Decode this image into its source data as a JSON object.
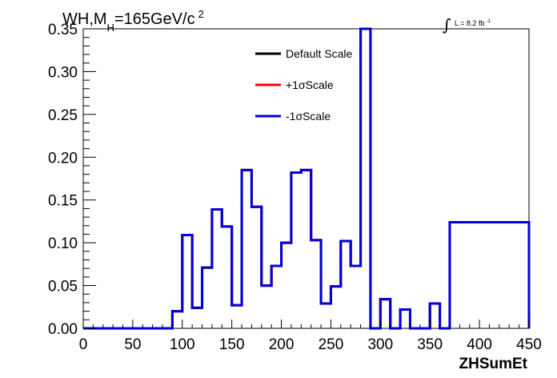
{
  "chart_data": {
    "type": "line",
    "title": {
      "prefix": "WH,M",
      "subscript": "H",
      "suffix": "=165GeV/c",
      "superscript": "2"
    },
    "lumi": {
      "main": "L = 8.2 fb",
      "superscript": "-1"
    },
    "xlabel": "ZHSumEt",
    "ylabel": "",
    "xlim": [
      0,
      450
    ],
    "ylim": [
      0,
      0.35
    ],
    "xticks": [
      0,
      50,
      100,
      150,
      200,
      250,
      300,
      350,
      400,
      450
    ],
    "xtick_labels": [
      "0",
      "50",
      "100",
      "150",
      "200",
      "250",
      "300",
      "350",
      "400",
      "450"
    ],
    "yticks": [
      0,
      0.05,
      0.1,
      0.15,
      0.2,
      0.25,
      0.3,
      0.35
    ],
    "ytick_labels": [
      "0.00",
      "0.05",
      "0.10",
      "0.15",
      "0.20",
      "0.25",
      "0.30",
      "0.35"
    ],
    "grid": false,
    "legend_position": "top-center",
    "bin_edges": [
      0,
      90,
      100,
      110,
      120,
      130,
      140,
      150,
      160,
      170,
      180,
      190,
      200,
      210,
      220,
      230,
      240,
      250,
      260,
      270,
      280,
      290,
      300,
      310,
      320,
      330,
      340,
      350,
      360,
      370,
      450
    ],
    "series": [
      {
        "name": "Default Scale",
        "color": "#000000",
        "visible_on_top": false,
        "values": [
          0,
          0.02,
          0.109,
          0.024,
          0.071,
          0.139,
          0.119,
          0.027,
          0.185,
          0.142,
          0.05,
          0.073,
          0.1,
          0.182,
          0.185,
          0.103,
          0.029,
          0.049,
          0.102,
          0.073,
          0.35,
          0.0,
          0.034,
          0.0,
          0.022,
          0.0,
          0.0,
          0.029,
          0.0,
          0.124,
          0.0
        ]
      },
      {
        "name": "+1σScale",
        "color": "#ff0000",
        "visible_on_top": false,
        "values": [
          0,
          0.02,
          0.109,
          0.024,
          0.071,
          0.139,
          0.119,
          0.027,
          0.185,
          0.142,
          0.05,
          0.073,
          0.1,
          0.182,
          0.185,
          0.103,
          0.029,
          0.049,
          0.102,
          0.073,
          0.35,
          0.0,
          0.034,
          0.0,
          0.022,
          0.0,
          0.0,
          0.029,
          0.0,
          0.124,
          0.0
        ]
      },
      {
        "name": "-1σScale",
        "color": "#0000dd",
        "visible_on_top": true,
        "values": [
          0,
          0.02,
          0.109,
          0.024,
          0.071,
          0.139,
          0.119,
          0.027,
          0.185,
          0.142,
          0.05,
          0.073,
          0.1,
          0.182,
          0.185,
          0.103,
          0.029,
          0.049,
          0.102,
          0.073,
          0.35,
          0.0,
          0.034,
          0.0,
          0.022,
          0.0,
          0.0,
          0.029,
          0.0,
          0.124,
          0.0
        ]
      }
    ]
  }
}
